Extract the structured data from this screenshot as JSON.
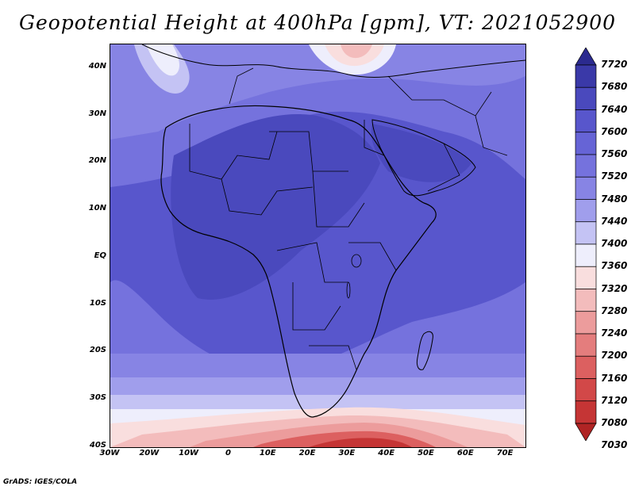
{
  "title": "Geopotential Height at 400hPa [gpm], VT: 2021052900",
  "credit": "GrADS: IGES/COLA",
  "map": {
    "lat_labels": [
      "40N",
      "30N",
      "20N",
      "10N",
      "EQ",
      "10S",
      "20S",
      "30S",
      "40S"
    ],
    "lat_values": [
      40,
      30,
      20,
      10,
      0,
      -10,
      -20,
      -30,
      -40
    ],
    "lon_labels": [
      "30W",
      "20W",
      "10W",
      "0",
      "10E",
      "20E",
      "30E",
      "40E",
      "50E",
      "60E",
      "70E"
    ],
    "lon_values": [
      -30,
      -20,
      -10,
      0,
      10,
      20,
      30,
      40,
      50,
      60,
      70
    ],
    "lat_range": [
      -40,
      45
    ],
    "lon_range": [
      -30,
      75
    ]
  },
  "colorbar": {
    "labels": [
      "7720",
      "7680",
      "7640",
      "7600",
      "7560",
      "7520",
      "7480",
      "7440",
      "7400",
      "7360",
      "7320",
      "7280",
      "7240",
      "7200",
      "7160",
      "7120",
      "7080",
      "7030"
    ],
    "colors": [
      "#2b2a8f",
      "#3a39a8",
      "#4a49bd",
      "#5856cc",
      "#6664d6",
      "#7572dd",
      "#8784e4",
      "#a09eec",
      "#c4c3f4",
      "#eeeefc",
      "#f9dede",
      "#f3bcbc",
      "#ec9c9c",
      "#e47d7d",
      "#dc6060",
      "#d24848",
      "#c53535",
      "#b02424"
    ]
  }
}
